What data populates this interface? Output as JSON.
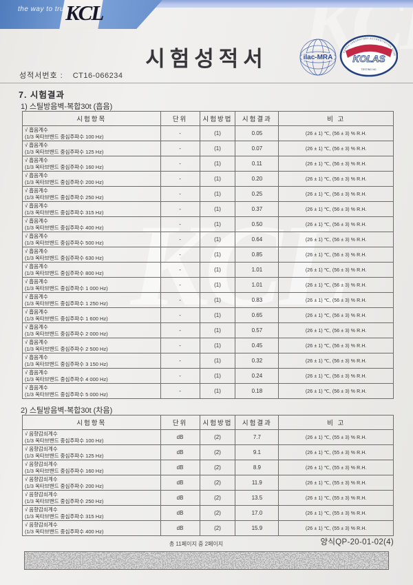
{
  "header": {
    "tagline": "the way to trust",
    "brand": "KCL",
    "title": "시험성적서",
    "report_no_label": "성적서번호 :",
    "report_no": "CT16-066234",
    "ilac_badge_text": "ilac-MRA",
    "kolas_badge_text": "KOLAS",
    "kolas_ring_text": "KOREA LABORATORY ACCREDITATION SCHEME",
    "kolas_sub_text": "TESTING NO."
  },
  "section_heading": "7. 시험결과",
  "colors": {
    "banner_blue": "#6e96d0",
    "strip_blue": "#bcc9ec",
    "navy": "#27457f",
    "kolas_red": "#c32945"
  },
  "tables": [
    {
      "caption": "1) 스틸방음벽-복합30t (흡음)",
      "columns": [
        "시험항목",
        "단위",
        "시험방법",
        "시험결과",
        "비  고"
      ],
      "rows": [
        {
          "item1": "√ 흡음계수",
          "item2": "(1/3 옥타브밴드 중심주파수 100 Hz)",
          "unit": "-",
          "method": "(1)",
          "result": "0.05",
          "remark": "(26 ± 1) ℃, (56 ± 3) % R.H."
        },
        {
          "item1": "√ 흡음계수",
          "item2": "(1/3 옥타브밴드 중심주파수 125 Hz)",
          "unit": "-",
          "method": "(1)",
          "result": "0.07",
          "remark": "(26 ± 1) ℃, (56 ± 3) % R.H."
        },
        {
          "item1": "√ 흡음계수",
          "item2": "(1/3 옥타브밴드 중심주파수 160 Hz)",
          "unit": "-",
          "method": "(1)",
          "result": "0.11",
          "remark": "(26 ± 1) ℃, (56 ± 3) % R.H."
        },
        {
          "item1": "√ 흡음계수",
          "item2": "(1/3 옥타브밴드 중심주파수 200 Hz)",
          "unit": "-",
          "method": "(1)",
          "result": "0.20",
          "remark": "(26 ± 1) ℃, (56 ± 3) % R.H."
        },
        {
          "item1": "√ 흡음계수",
          "item2": "(1/3 옥타브밴드 중심주파수 250 Hz)",
          "unit": "-",
          "method": "(1)",
          "result": "0.25",
          "remark": "(26 ± 1) ℃, (56 ± 3) % R.H."
        },
        {
          "item1": "√ 흡음계수",
          "item2": "(1/3 옥타브밴드 중심주파수 315 Hz)",
          "unit": "-",
          "method": "(1)",
          "result": "0.37",
          "remark": "(26 ± 1) ℃, (56 ± 3) % R.H."
        },
        {
          "item1": "√ 흡음계수",
          "item2": "(1/3 옥타브밴드 중심주파수 400 Hz)",
          "unit": "-",
          "method": "(1)",
          "result": "0.50",
          "remark": "(26 ± 1) ℃, (56 ± 3) % R.H."
        },
        {
          "item1": "√ 흡음계수",
          "item2": "(1/3 옥타브밴드 중심주파수 500 Hz)",
          "unit": "-",
          "method": "(1)",
          "result": "0.64",
          "remark": "(26 ± 1) ℃, (56 ± 3) % R.H."
        },
        {
          "item1": "√ 흡음계수",
          "item2": "(1/3 옥타브밴드 중심주파수 630 Hz)",
          "unit": "-",
          "method": "(1)",
          "result": "0.85",
          "remark": "(26 ± 1) ℃, (56 ± 3) % R.H."
        },
        {
          "item1": "√ 흡음계수",
          "item2": "(1/3 옥타브밴드 중심주파수 800 Hz)",
          "unit": "-",
          "method": "(1)",
          "result": "1.01",
          "remark": "(26 ± 1) ℃, (56 ± 3) % R.H."
        },
        {
          "item1": "√ 흡음계수",
          "item2": "(1/3 옥타브밴드 중심주파수 1 000 Hz)",
          "unit": "-",
          "method": "(1)",
          "result": "1.01",
          "remark": "(26 ± 1) ℃, (56 ± 3) % R.H."
        },
        {
          "item1": "√ 흡음계수",
          "item2": "(1/3 옥타브밴드 중심주파수 1 250 Hz)",
          "unit": "-",
          "method": "(1)",
          "result": "0.83",
          "remark": "(26 ± 1) ℃, (56 ± 3) % R.H."
        },
        {
          "item1": "√ 흡음계수",
          "item2": "(1/3 옥타브밴드 중심주파수 1 600 Hz)",
          "unit": "-",
          "method": "(1)",
          "result": "0.65",
          "remark": "(26 ± 1) ℃, (56 ± 3) % R.H."
        },
        {
          "item1": "√ 흡음계수",
          "item2": "(1/3 옥타브밴드 중심주파수 2 000 Hz)",
          "unit": "-",
          "method": "(1)",
          "result": "0.57",
          "remark": "(26 ± 1) ℃, (56 ± 3) % R.H."
        },
        {
          "item1": "√ 흡음계수",
          "item2": "(1/3 옥타브밴드 중심주파수 2 500 Hz)",
          "unit": "-",
          "method": "(1)",
          "result": "0.45",
          "remark": "(26 ± 1) ℃, (56 ± 3) % R.H."
        },
        {
          "item1": "√ 흡음계수",
          "item2": "(1/3 옥타브밴드 중심주파수 3 150 Hz)",
          "unit": "-",
          "method": "(1)",
          "result": "0.32",
          "remark": "(26 ± 1) ℃, (56 ± 3) % R.H."
        },
        {
          "item1": "√ 흡음계수",
          "item2": "(1/3 옥타브밴드 중심주파수 4 000 Hz)",
          "unit": "-",
          "method": "(1)",
          "result": "0.24",
          "remark": "(26 ± 1) ℃, (56 ± 3) % R.H."
        },
        {
          "item1": "√ 흡음계수",
          "item2": "(1/3 옥타브밴드 중심주파수 5 000 Hz)",
          "unit": "-",
          "method": "(1)",
          "result": "0.18",
          "remark": "(26 ± 1) ℃, (56 ± 3) % R.H."
        }
      ]
    },
    {
      "caption": "2) 스틸방음벽-복합30t (차음)",
      "columns": [
        "시험항목",
        "단위",
        "시험방법",
        "시험결과",
        "비  고"
      ],
      "rows": [
        {
          "item1": "√ 음향감쇠계수",
          "item2": "(1/3 옥타브밴드 중심주파수 100 Hz)",
          "unit": "dB",
          "method": "(2)",
          "result": "7.7",
          "remark": "(26 ± 1) ℃, (55 ± 3) % R.H."
        },
        {
          "item1": "√ 음향감쇠계수",
          "item2": "(1/3 옥타브밴드 중심주파수 125 Hz)",
          "unit": "dB",
          "method": "(2)",
          "result": "9.1",
          "remark": "(26 ± 1) ℃, (55 ± 3) % R.H."
        },
        {
          "item1": "√ 음향감쇠계수",
          "item2": "(1/3 옥타브밴드 중심주파수 160 Hz)",
          "unit": "dB",
          "method": "(2)",
          "result": "8.9",
          "remark": "(26 ± 1) ℃, (55 ± 3) % R.H."
        },
        {
          "item1": "√ 음향감쇠계수",
          "item2": "(1/3 옥타브밴드 중심주파수 200 Hz)",
          "unit": "dB",
          "method": "(2)",
          "result": "11.9",
          "remark": "(26 ± 1) ℃, (55 ± 3) % R.H."
        },
        {
          "item1": "√ 음향감쇠계수",
          "item2": "(1/3 옥타브밴드 중심주파수 250 Hz)",
          "unit": "dB",
          "method": "(2)",
          "result": "13.5",
          "remark": "(26 ± 1) ℃, (55 ± 3) % R.H."
        },
        {
          "item1": "√ 음향감쇠계수",
          "item2": "(1/3 옥타브밴드 중심주파수 315 Hz)",
          "unit": "dB",
          "method": "(2)",
          "result": "17.0",
          "remark": "(26 ± 1) ℃, (55 ± 3) % R.H."
        },
        {
          "item1": "√ 음향감쇠계수",
          "item2": "(1/3 옥타브밴드 중심주파수 400 Hz)",
          "unit": "dB",
          "method": "(2)",
          "result": "15.9",
          "remark": "(26 ± 1) ℃, (55 ± 3) % R.H."
        }
      ]
    }
  ],
  "footer": {
    "page_info": "총 11페이지 중 2페이지",
    "form_no": "양식QP-20-01-02(4)"
  }
}
